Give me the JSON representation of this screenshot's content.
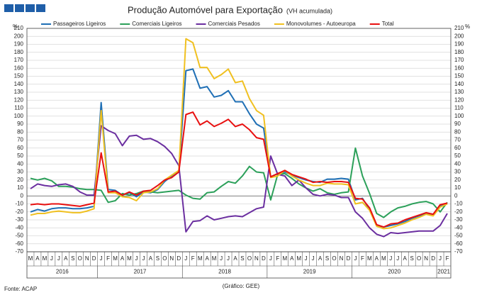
{
  "chart_data": {
    "type": "line",
    "title": "Produção Automóvel para Exportação",
    "subtitle": "(VH acumulada)",
    "y_label": "%",
    "source": "Fonte: ACAP",
    "credit": "(Gráfico: GEE)",
    "categories": [
      "M",
      "A",
      "M",
      "J",
      "J",
      "A",
      "S",
      "O",
      "N",
      "D",
      "J",
      "F",
      "M",
      "A",
      "M",
      "J",
      "J",
      "A",
      "S",
      "O",
      "N",
      "D",
      "J",
      "F",
      "M",
      "A",
      "M",
      "J",
      "J",
      "A",
      "S",
      "O",
      "N",
      "D",
      "J",
      "F",
      "M",
      "A",
      "M",
      "J",
      "J",
      "A",
      "S",
      "O",
      "N",
      "D",
      "J",
      "F",
      "M",
      "A",
      "M",
      "J",
      "J",
      "A",
      "S",
      "O",
      "N",
      "D",
      "J",
      "F"
    ],
    "years": [
      "2016",
      "2017",
      "2018",
      "2019",
      "2020",
      "2021"
    ],
    "ylim": [
      -70,
      210
    ],
    "yticks": [
      -70,
      -60,
      -50,
      -40,
      -30,
      -20,
      -10,
      0,
      10,
      20,
      30,
      40,
      50,
      60,
      70,
      80,
      90,
      100,
      110,
      120,
      130,
      140,
      150,
      160,
      170,
      180,
      190,
      200,
      210
    ],
    "grid": true,
    "series": [
      {
        "name": "Passageiros Ligeiros",
        "color": "#1f6fb5",
        "values": [
          -20,
          -17,
          -19,
          -16,
          -15,
          -15,
          -16,
          -16,
          -15,
          -13,
          117,
          8,
          7,
          1,
          4,
          -1,
          5,
          4,
          8,
          18,
          25,
          30,
          157,
          159,
          135,
          137,
          124,
          126,
          132,
          118,
          118,
          103,
          90,
          85,
          24,
          28,
          30,
          26,
          23,
          20,
          18,
          17,
          21,
          21,
          22,
          21,
          -5,
          -3,
          -17,
          -37,
          -39,
          -37,
          -35,
          -32,
          -28,
          -25,
          -22,
          -23,
          -13,
          -9
        ]
      },
      {
        "name": "Comerciais Ligeiros",
        "color": "#2ca05a",
        "values": [
          22,
          20,
          22,
          19,
          12,
          12,
          11,
          9,
          8,
          8,
          7,
          -8,
          -6,
          3,
          1,
          3,
          6,
          5,
          4,
          5,
          6,
          7,
          1,
          -3,
          -4,
          4,
          5,
          12,
          18,
          16,
          25,
          37,
          30,
          29,
          -5,
          27,
          28,
          22,
          15,
          10,
          6,
          9,
          4,
          2,
          4,
          5,
          60,
          25,
          3,
          -22,
          -27,
          -20,
          -15,
          -13,
          -10,
          -8,
          -7,
          -10,
          -20,
          -8
        ]
      },
      {
        "name": "Comerciais Pesados",
        "color": "#6b2fa0",
        "values": [
          9,
          15,
          13,
          12,
          14,
          15,
          12,
          5,
          1,
          1,
          88,
          82,
          78,
          63,
          75,
          76,
          71,
          72,
          68,
          62,
          53,
          38,
          -45,
          -32,
          -31,
          -25,
          -30,
          -28,
          -26,
          -25,
          -26,
          -21,
          -16,
          -14,
          50,
          27,
          25,
          13,
          20,
          10,
          2,
          0,
          2,
          1,
          -2,
          -2,
          -20,
          -28,
          -40,
          -48,
          -51,
          -46,
          -47,
          -46,
          -45,
          -44,
          -44,
          -44,
          -37,
          -22
        ]
      },
      {
        "name": "Monovolumes - Autoeuropa",
        "color": "#f0c020",
        "values": [
          -24,
          -22,
          -22,
          -20,
          -19,
          -20,
          -21,
          -21,
          -19,
          -16,
          107,
          4,
          4,
          -1,
          -2,
          -6,
          4,
          5,
          9,
          20,
          26,
          32,
          197,
          192,
          161,
          161,
          147,
          152,
          159,
          142,
          144,
          122,
          107,
          101,
          23,
          25,
          32,
          25,
          20,
          16,
          13,
          13,
          16,
          15,
          15,
          14,
          -10,
          -8,
          -18,
          -38,
          -41,
          -40,
          -37,
          -34,
          -30,
          -27,
          -23,
          -25,
          -14,
          -10
        ]
      },
      {
        "name": "Total",
        "color": "#e81010",
        "values": [
          -11,
          -10,
          -11,
          -10,
          -10,
          -11,
          -12,
          -13,
          -11,
          -9,
          54,
          5,
          6,
          1,
          5,
          1,
          6,
          7,
          13,
          20,
          23,
          30,
          102,
          105,
          89,
          94,
          87,
          91,
          96,
          87,
          90,
          83,
          73,
          71,
          24,
          28,
          32,
          27,
          24,
          21,
          17,
          18,
          17,
          18,
          18,
          17,
          -3,
          -4,
          -15,
          -36,
          -39,
          -35,
          -34,
          -30,
          -27,
          -24,
          -21,
          -23,
          -11,
          -9
        ]
      }
    ]
  }
}
